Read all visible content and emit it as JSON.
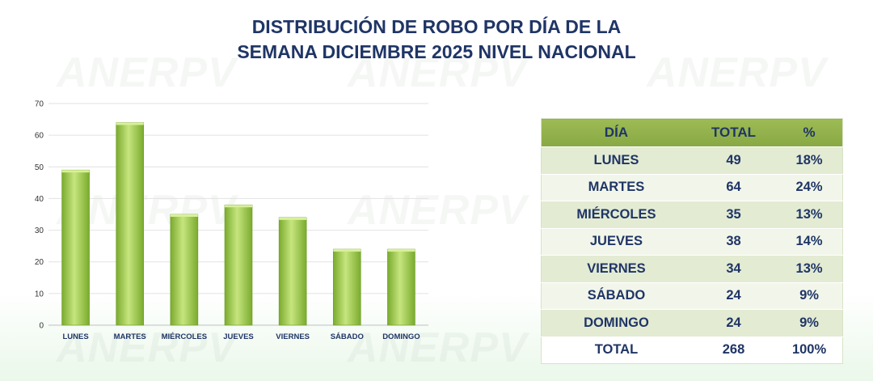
{
  "title_line1": "DISTRIBUCIÓN DE ROBO POR DÍA DE LA",
  "title_line2": "SEMANA DICIEMBRE 2025 NIVEL NACIONAL",
  "watermark": "ANERPV",
  "colors": {
    "title": "#1f3566",
    "bar": "#8cbf3f",
    "bar_light": "#c6e57e",
    "header": "#9dbb55"
  },
  "chart_data": {
    "type": "bar",
    "title": "DISTRIBUCIÓN DE ROBO POR DÍA DE LA SEMANA DICIEMBRE 2025 NIVEL NACIONAL",
    "categories": [
      "LUNES",
      "MARTES",
      "MIÉRCOLES",
      "JUEVES",
      "VIERNES",
      "SÁBADO",
      "DOMINGO"
    ],
    "values": [
      49,
      64,
      35,
      38,
      34,
      24,
      24
    ],
    "ylim": [
      0,
      70
    ],
    "yticks": [
      "0",
      "10",
      "20",
      "30",
      "40",
      "50",
      "60",
      "70"
    ],
    "grid": true,
    "xlabel": "",
    "ylabel": ""
  },
  "table": {
    "headers": [
      "DÍA",
      "TOTAL",
      "%"
    ],
    "rows": [
      [
        "LUNES",
        "49",
        "18%"
      ],
      [
        "MARTES",
        "64",
        "24%"
      ],
      [
        "MIÉRCOLES",
        "35",
        "13%"
      ],
      [
        "JUEVES",
        "38",
        "14%"
      ],
      [
        "VIERNES",
        "34",
        "13%"
      ],
      [
        "SÁBADO",
        "24",
        "9%"
      ],
      [
        "DOMINGO",
        "24",
        "9%"
      ]
    ],
    "total": [
      "TOTAL",
      "268",
      "100%"
    ]
  }
}
